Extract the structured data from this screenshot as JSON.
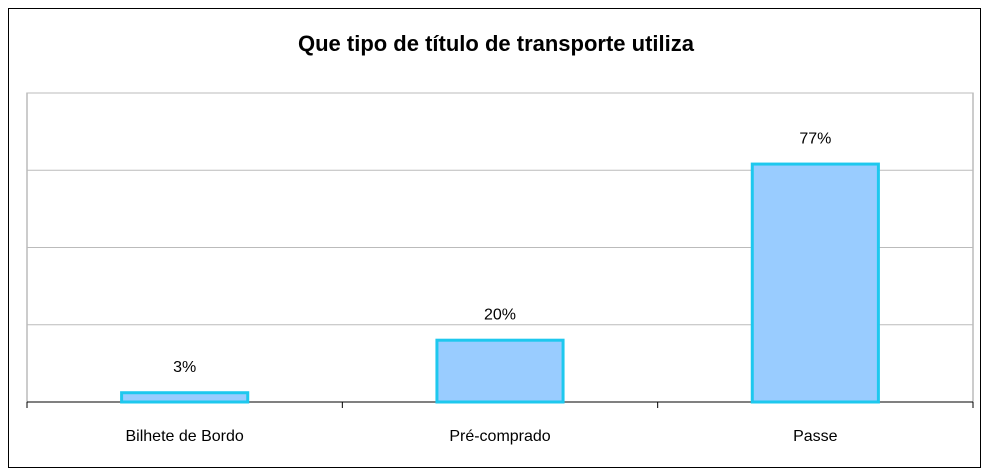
{
  "chart_data": {
    "type": "bar",
    "title": "Que tipo de título de transporte utiliza",
    "categories": [
      "Bilhete de Bordo",
      "Pré-comprado",
      "Passe"
    ],
    "values": [
      3,
      20,
      77
    ],
    "value_labels": [
      "3%",
      "20%",
      "77%"
    ],
    "color": "#99ccff",
    "edge_color": "#1ec8ee",
    "ylim": [
      0,
      100
    ],
    "yticks": [
      0,
      25,
      50,
      75,
      100
    ],
    "grid": true
  }
}
